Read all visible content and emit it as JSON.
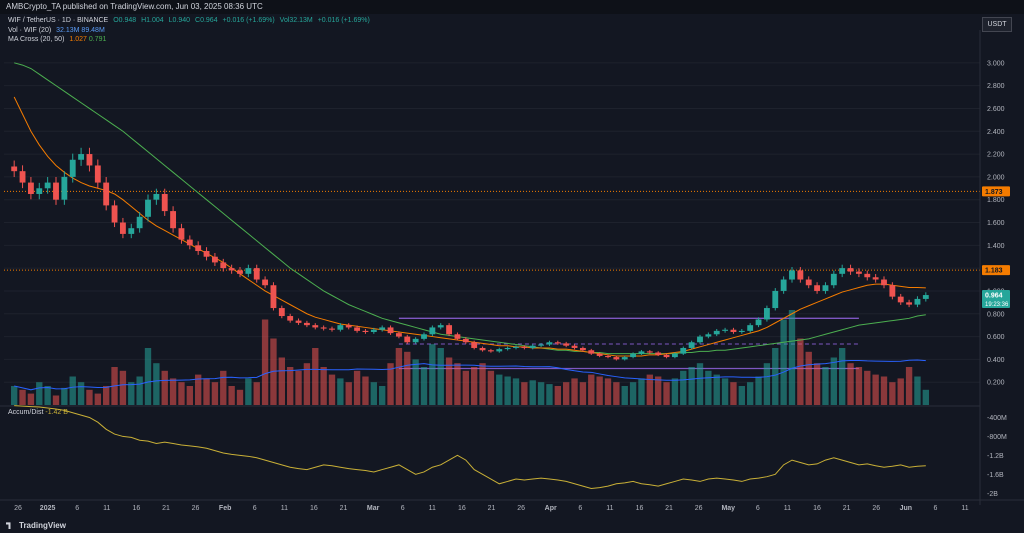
{
  "header": {
    "published": "AMBCrypto_TA published on TradingView.com, Jun 03, 2025 08:36 UTC"
  },
  "legend": {
    "symbol": "WIF / TetherUS · 1D · BINANCE",
    "ohlc": [
      "O0.948",
      "H1.004",
      "L0.940",
      "C0.964",
      "+0.016 (+1.69%)",
      "Vol32.13M",
      "+0.016 (+1.69%)"
    ],
    "vol_label": "Vol · WIF (20)",
    "vol_vals": "32.13M 89.48M",
    "ma_label": "MA Cross (20, 50)",
    "ma_vals": [
      "1.027",
      "0.791"
    ]
  },
  "accum": {
    "label": "Accum/Dist",
    "value": "-1.42 B"
  },
  "currency": "USDT",
  "footer": {
    "brand": "TradingView"
  },
  "colors": {
    "bg": "#131722",
    "up": "#26a69a",
    "down": "#ef5350",
    "ma_fast": "#f57c00",
    "ma_slow": "#4caf50",
    "box": "#7e57c2",
    "ad": "#c9b037",
    "vol_ma": "#2962ff"
  },
  "chart_data": {
    "type": "candlestick",
    "y_axis": {
      "labels": [
        "3.000",
        "2.800",
        "2.600",
        "2.400",
        "2.200",
        "2.000",
        "1.800",
        "1.600",
        "1.400",
        "1.200",
        "1.000",
        "0.800",
        "0.600",
        "0.400",
        "0.200"
      ],
      "min": 0.0,
      "max": 3.2
    },
    "price_tags": [
      {
        "label": "1.873",
        "value": 1.873
      },
      {
        "label": "1.183",
        "value": 1.183
      },
      {
        "label": "0.964",
        "value": 0.964,
        "sub": "19:23:36"
      }
    ],
    "accum_axis": [
      "-400M",
      "-800M",
      "-1.2B",
      "-1.6B",
      "-2B"
    ],
    "x_labels": [
      "26",
      "2025",
      "6",
      "11",
      "16",
      "21",
      "26",
      "Feb",
      "6",
      "11",
      "16",
      "21",
      "Mar",
      "6",
      "11",
      "16",
      "21",
      "26",
      "Apr",
      "6",
      "11",
      "16",
      "21",
      "26",
      "May",
      "6",
      "11",
      "16",
      "21",
      "26",
      "Jun",
      "6",
      "11"
    ],
    "range_box": {
      "top": 0.76,
      "mid": 0.535,
      "bottom": 0.32
    },
    "closes": [
      2.05,
      1.95,
      1.85,
      1.9,
      1.95,
      1.8,
      2.0,
      2.15,
      2.2,
      2.1,
      1.95,
      1.75,
      1.6,
      1.5,
      1.55,
      1.65,
      1.8,
      1.85,
      1.7,
      1.55,
      1.45,
      1.4,
      1.35,
      1.3,
      1.25,
      1.2,
      1.18,
      1.15,
      1.2,
      1.1,
      1.05,
      0.85,
      0.78,
      0.74,
      0.72,
      0.7,
      0.68,
      0.67,
      0.66,
      0.7,
      0.68,
      0.65,
      0.64,
      0.66,
      0.68,
      0.63,
      0.6,
      0.55,
      0.58,
      0.62,
      0.68,
      0.7,
      0.62,
      0.58,
      0.55,
      0.5,
      0.48,
      0.47,
      0.49,
      0.5,
      0.51,
      0.5,
      0.52,
      0.53,
      0.55,
      0.54,
      0.52,
      0.5,
      0.48,
      0.45,
      0.43,
      0.42,
      0.4,
      0.42,
      0.45,
      0.47,
      0.46,
      0.44,
      0.42,
      0.45,
      0.5,
      0.55,
      0.6,
      0.62,
      0.65,
      0.66,
      0.64,
      0.65,
      0.7,
      0.75,
      0.85,
      1.0,
      1.1,
      1.18,
      1.1,
      1.05,
      1.0,
      1.05,
      1.15,
      1.2,
      1.17,
      1.15,
      1.12,
      1.1,
      1.05,
      0.95,
      0.9,
      0.88,
      0.93,
      0.964
    ],
    "fast_ma": [
      2.7,
      2.55,
      2.4,
      2.28,
      2.18,
      2.1,
      2.04,
      1.99,
      1.95,
      1.92,
      1.9,
      1.88,
      1.85,
      1.8,
      1.74,
      1.68,
      1.62,
      1.57,
      1.53,
      1.49,
      1.45,
      1.41,
      1.37,
      1.33,
      1.29,
      1.25,
      1.2,
      1.15,
      1.1,
      1.05,
      1.0,
      0.96,
      0.92,
      0.88,
      0.84,
      0.8,
      0.77,
      0.75,
      0.73,
      0.71,
      0.7,
      0.69,
      0.68,
      0.67,
      0.66,
      0.65,
      0.64,
      0.63,
      0.62,
      0.61,
      0.6,
      0.59,
      0.58,
      0.57,
      0.56,
      0.55,
      0.54,
      0.53,
      0.52,
      0.52,
      0.51,
      0.51,
      0.5,
      0.5,
      0.5,
      0.49,
      0.49,
      0.48,
      0.47,
      0.46,
      0.45,
      0.44,
      0.43,
      0.43,
      0.43,
      0.43,
      0.44,
      0.44,
      0.45,
      0.46,
      0.47,
      0.49,
      0.51,
      0.53,
      0.55,
      0.57,
      0.59,
      0.61,
      0.63,
      0.65,
      0.68,
      0.72,
      0.76,
      0.8,
      0.84,
      0.87,
      0.9,
      0.93,
      0.96,
      0.99,
      1.01,
      1.03,
      1.05,
      1.06,
      1.06,
      1.05,
      1.04,
      1.03,
      1.03,
      1.027
    ],
    "slow_ma": [
      3.0,
      2.98,
      2.95,
      2.9,
      2.85,
      2.8,
      2.75,
      2.7,
      2.65,
      2.6,
      2.55,
      2.5,
      2.45,
      2.4,
      2.34,
      2.28,
      2.22,
      2.16,
      2.1,
      2.04,
      1.98,
      1.92,
      1.86,
      1.8,
      1.74,
      1.68,
      1.62,
      1.56,
      1.5,
      1.44,
      1.38,
      1.32,
      1.26,
      1.2,
      1.15,
      1.1,
      1.05,
      1.0,
      0.96,
      0.92,
      0.88,
      0.85,
      0.82,
      0.79,
      0.76,
      0.74,
      0.72,
      0.7,
      0.68,
      0.66,
      0.64,
      0.62,
      0.61,
      0.6,
      0.59,
      0.58,
      0.57,
      0.56,
      0.55,
      0.54,
      0.53,
      0.52,
      0.51,
      0.5,
      0.49,
      0.48,
      0.48,
      0.47,
      0.47,
      0.46,
      0.46,
      0.45,
      0.45,
      0.45,
      0.45,
      0.45,
      0.45,
      0.45,
      0.45,
      0.45,
      0.46,
      0.46,
      0.47,
      0.47,
      0.48,
      0.48,
      0.49,
      0.5,
      0.51,
      0.52,
      0.53,
      0.54,
      0.55,
      0.56,
      0.57,
      0.58,
      0.6,
      0.62,
      0.64,
      0.66,
      0.68,
      0.7,
      0.71,
      0.72,
      0.73,
      0.74,
      0.75,
      0.76,
      0.78,
      0.791
    ],
    "volume": [
      0.1,
      0.08,
      0.06,
      0.12,
      0.1,
      0.05,
      0.09,
      0.15,
      0.12,
      0.08,
      0.06,
      0.1,
      0.2,
      0.18,
      0.12,
      0.15,
      0.3,
      0.22,
      0.18,
      0.14,
      0.12,
      0.1,
      0.16,
      0.14,
      0.12,
      0.18,
      0.1,
      0.08,
      0.14,
      0.12,
      0.45,
      0.35,
      0.25,
      0.2,
      0.18,
      0.22,
      0.3,
      0.2,
      0.16,
      0.14,
      0.12,
      0.18,
      0.15,
      0.12,
      0.1,
      0.22,
      0.3,
      0.28,
      0.24,
      0.2,
      0.32,
      0.3,
      0.25,
      0.22,
      0.18,
      0.2,
      0.22,
      0.18,
      0.16,
      0.15,
      0.14,
      0.12,
      0.13,
      0.12,
      0.11,
      0.1,
      0.12,
      0.14,
      0.12,
      0.16,
      0.15,
      0.14,
      0.12,
      0.1,
      0.12,
      0.14,
      0.16,
      0.15,
      0.12,
      0.14,
      0.18,
      0.2,
      0.22,
      0.18,
      0.16,
      0.14,
      0.12,
      0.1,
      0.12,
      0.15,
      0.22,
      0.3,
      0.45,
      0.5,
      0.35,
      0.28,
      0.22,
      0.2,
      0.25,
      0.3,
      0.22,
      0.2,
      0.18,
      0.16,
      0.15,
      0.12,
      0.14,
      0.2,
      0.15,
      0.08
    ],
    "accum": [
      -0.15,
      -0.16,
      -0.17,
      -0.18,
      -0.2,
      -0.22,
      -0.25,
      -0.3,
      -0.35,
      -0.4,
      -0.5,
      -0.65,
      -0.75,
      -0.8,
      -0.82,
      -0.88,
      -0.9,
      -0.95,
      -0.92,
      -0.95,
      -0.98,
      -1.0,
      -1.02,
      -1.05,
      -1.1,
      -1.15,
      -1.18,
      -1.2,
      -1.22,
      -1.25,
      -1.3,
      -1.35,
      -1.4,
      -1.45,
      -1.48,
      -1.5,
      -1.45,
      -1.4,
      -1.42,
      -1.45,
      -1.48,
      -1.5,
      -1.52,
      -1.55,
      -1.5,
      -1.45,
      -1.4,
      -1.5,
      -1.6,
      -1.55,
      -1.45,
      -1.4,
      -1.3,
      -1.2,
      -1.3,
      -1.5,
      -1.6,
      -1.7,
      -1.8,
      -1.75,
      -1.7,
      -1.72,
      -1.7,
      -1.68,
      -1.7,
      -1.72,
      -1.75,
      -1.8,
      -1.85,
      -1.9,
      -1.88,
      -1.85,
      -1.8,
      -1.78,
      -1.75,
      -1.8,
      -1.82,
      -1.85,
      -1.8,
      -1.75,
      -1.7,
      -1.72,
      -1.75,
      -1.7,
      -1.68,
      -1.7,
      -1.72,
      -1.75,
      -1.7,
      -1.68,
      -1.65,
      -1.6,
      -1.4,
      -1.3,
      -1.35,
      -1.4,
      -1.38,
      -1.3,
      -1.25,
      -1.3,
      -1.35,
      -1.4,
      -1.38,
      -1.42,
      -1.45,
      -1.43,
      -1.4,
      -1.45,
      -1.43,
      -1.42
    ]
  }
}
